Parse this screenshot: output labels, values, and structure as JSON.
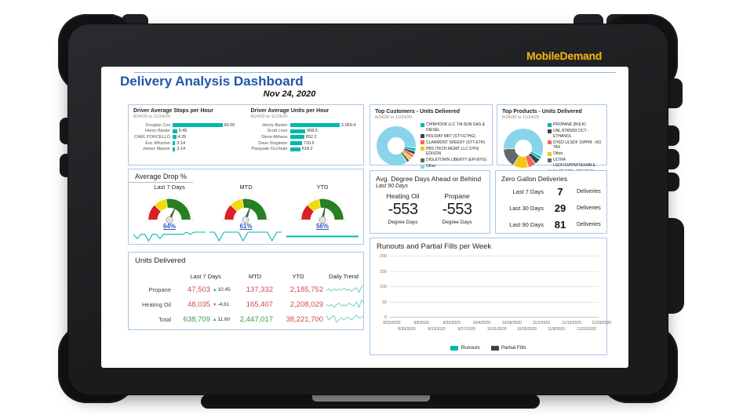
{
  "device": {
    "brand_logo": "MobileDemand"
  },
  "colors": {
    "teal": "#01B8AA",
    "dark": "#374649",
    "red": "#FD625E",
    "yellow": "#F2C80F",
    "gray": "#5F6B6D",
    "lightblue": "#8AD4EB",
    "title_blue": "#1F56A9",
    "link_blue": "#3355B8",
    "value_red": "#D64554",
    "value_green": "#359C51",
    "gauge_red": "#DB1F26",
    "gauge_yellow": "#F2DA0B",
    "gauge_green": "#26801F",
    "spark_teal": "#01B8AA",
    "trend_teal": "#79CDC4",
    "panel_border": "#A9C7E7"
  },
  "header": {
    "title": "Delivery Analysis Dashboard",
    "date": "Nov 24, 2020"
  },
  "driver_stops": {
    "title": "Driver Average Stops per Hour",
    "subtitle": "8/24/20 to 11/24/20",
    "chart_data": {
      "type": "bar",
      "orientation": "horizontal",
      "categories": [
        "Douglas Cox",
        "Henry Baxter",
        "CARL PORCELLO",
        "Eric Wharton",
        "James Maurer"
      ],
      "values": [
        60.0,
        5.45,
        4.29,
        3.14,
        3.14
      ],
      "labels": [
        "60.00",
        "5.45",
        "4.29",
        "3.14",
        "3.14"
      ]
    }
  },
  "driver_units": {
    "title": "Driver Average Units per Hour",
    "subtitle": "8/24/20 to 11/24/20",
    "chart_data": {
      "type": "bar",
      "orientation": "horizontal",
      "categories": [
        "Henry Baxter",
        "Scott Love",
        "Steve Althaus",
        "Dave Singleton",
        "Pasquale Occhiuto"
      ],
      "values": [
        2959.4,
        908.5,
        852.2,
        710.6,
        618.2
      ],
      "labels": [
        "2,959.4",
        "908.5",
        "852.2",
        "710.6",
        "618.2"
      ]
    }
  },
  "top_customers": {
    "title": "Top Customers - Units Delivered",
    "subtitle": "8/24/20 to 11/24/20",
    "chart_data": {
      "type": "pie",
      "donut": true,
      "from_deg": 97,
      "slices": [
        {
          "label": "CHINHOOK LLC T/A SUN GAS & DIESEL",
          "color": "#01B8AA",
          "pct": 2.8
        },
        {
          "label": "HOLIDAY MKT (STT-ETHG)",
          "color": "#374649",
          "pct": 2.9
        },
        {
          "label": "CLARMONT SPEEDY (STT-ETH)",
          "color": "#FD625E",
          "pct": 2.9
        },
        {
          "label": "PBS (TECH MGMT LLC DYN) EDISON",
          "color": "#F2C80F",
          "pct": 2.8
        },
        {
          "label": "DIGLETOWN LIBERTY (EPI-BYG)",
          "color": "#5F6B6D",
          "pct": 2.8
        },
        {
          "label": "Other",
          "color": "#8AD4EB",
          "pct": 85.8
        }
      ]
    }
  },
  "top_products": {
    "title": "Top Products - Units Delivered",
    "subtitle": "8/24/20 to 11/24/20",
    "chart_data": {
      "type": "pie",
      "donut": true,
      "from_deg": 115,
      "slices": [
        {
          "label": "PROPANE (BULK)",
          "color": "#01B8AA",
          "pct": 2.8
        },
        {
          "label": "UNL 87/89/93 OCT - ETHANOL",
          "color": "#374649",
          "pct": 5.0
        },
        {
          "label": "DYED ULSDF 15PPM - NO TAX",
          "color": "#FD625E",
          "pct": 6.5
        },
        {
          "label": "Other",
          "color": "#F2C80F",
          "pct": 12.5
        },
        {
          "label": "ULTRA LSDF/15PPM/TAXABLE",
          "color": "#5F6B6D",
          "pct": 16.0
        },
        {
          "label": "NL 87 OCT - ETHANOL",
          "color": "#8AD4EB",
          "pct": 57.2
        }
      ]
    }
  },
  "avg_drop": {
    "title": "Average Drop %",
    "gauges": [
      {
        "label": "Last 7 Days",
        "value_text": "64%",
        "value_pct": 64,
        "ticks": [
          "0",
          "50",
          "100"
        ],
        "spark": [
          4,
          2,
          4,
          4,
          1,
          4,
          4,
          2,
          4,
          4,
          4,
          4,
          4,
          4,
          5,
          4,
          5,
          5,
          5,
          5
        ]
      },
      {
        "label": "MTD",
        "value_text": "61%",
        "value_pct": 61,
        "ticks": [
          "0",
          "50",
          "100"
        ],
        "spark": [
          6,
          6,
          0,
          6,
          6,
          6,
          6,
          0,
          6,
          6,
          6,
          6,
          6,
          0,
          6,
          6
        ]
      },
      {
        "label": "YTD",
        "value_text": "56%",
        "value_pct": 56,
        "ticks": [
          "0",
          "50",
          "100"
        ],
        "spark": [
          5,
          5,
          5,
          5,
          5,
          5,
          5,
          5,
          5,
          5,
          5,
          5,
          5,
          5,
          5,
          5
        ]
      }
    ]
  },
  "degree_days": {
    "title": "Avg. Degree Days Ahead or Behind",
    "subtitle": "Last 90 Days",
    "metrics": [
      {
        "label": "Heating Oil",
        "value": "-553",
        "caption": "Degree Days"
      },
      {
        "label": "Propane",
        "value": "-553",
        "caption": "Degree Days"
      }
    ]
  },
  "zero_gallon": {
    "title": "Zero Gallon Deliveries",
    "rows": [
      {
        "label": "Last 7 Days",
        "value": "7",
        "caption": "Deliveries"
      },
      {
        "label": "Last 30 Days",
        "value": "29",
        "caption": "Deliveries"
      },
      {
        "label": "Last 90 Days",
        "value": "81",
        "caption": "Deliveries"
      }
    ]
  },
  "units_delivered": {
    "title": "Units Delivered",
    "headers": {
      "col1": "Last 7 Days",
      "col2": "MTD",
      "col3": "YTD",
      "col4": "Daily Trend"
    },
    "rows": [
      {
        "label": "Propane",
        "last7": "47,503",
        "last7_color": "red",
        "delta": "10.45",
        "delta_dir": "up",
        "mtd": "137,332",
        "mtd_color": "red",
        "ytd": "2,185,752",
        "ytd_color": "red",
        "trend": [
          4,
          5,
          3,
          5,
          4,
          5,
          4,
          6,
          4,
          5,
          3,
          5,
          6,
          2,
          7,
          8
        ]
      },
      {
        "label": "Heating Oil",
        "last7": "48,035",
        "last7_color": "red",
        "delta": "-4.81",
        "delta_dir": "down",
        "mtd": "165,407",
        "mtd_color": "red",
        "ytd": "2,208,029",
        "ytd_color": "red",
        "trend": [
          5,
          4,
          5,
          3,
          5,
          6,
          4,
          5,
          4,
          6,
          5,
          4,
          7,
          3,
          8,
          6
        ]
      },
      {
        "label": "Total",
        "last7": "638,709",
        "last7_color": "green",
        "delta": "11.60",
        "delta_dir": "up",
        "mtd": "2,447,017",
        "mtd_color": "green",
        "ytd": "38,221,700",
        "ytd_color": "red",
        "trend": [
          6,
          4,
          5,
          6,
          3,
          4,
          5,
          4,
          5,
          5,
          4,
          5,
          6,
          5,
          5,
          6
        ]
      }
    ]
  },
  "runouts": {
    "title": "Runouts and Partial Fills per Week",
    "chart_data": {
      "type": "bar",
      "grouped": true,
      "ylim": [
        0,
        200
      ],
      "yticks": [
        0,
        50,
        100,
        150,
        200
      ],
      "x_dates": [
        "8/23/2020",
        "8/30/2020",
        "9/6/2020",
        "9/13/2020",
        "9/20/2020",
        "9/27/2020",
        "10/4/2020",
        "10/11/2020",
        "10/18/2020",
        "10/25/2020",
        "11/1/2020",
        "11/8/2020",
        "11/15/2020",
        "11/22/2020",
        "11/29/2020"
      ],
      "series": [
        {
          "name": "Runouts",
          "color": "#01B8AA",
          "values": [
            71,
            70,
            71,
            137,
            134,
            114,
            110,
            118,
            129,
            119,
            114,
            120,
            141,
            3
          ]
        },
        {
          "name": "Partial Fills",
          "color": "#374649",
          "values": [
            77,
            97,
            62,
            110,
            91,
            54,
            51,
            57,
            52,
            127,
            167,
            98,
            145,
            0
          ]
        }
      ]
    }
  }
}
